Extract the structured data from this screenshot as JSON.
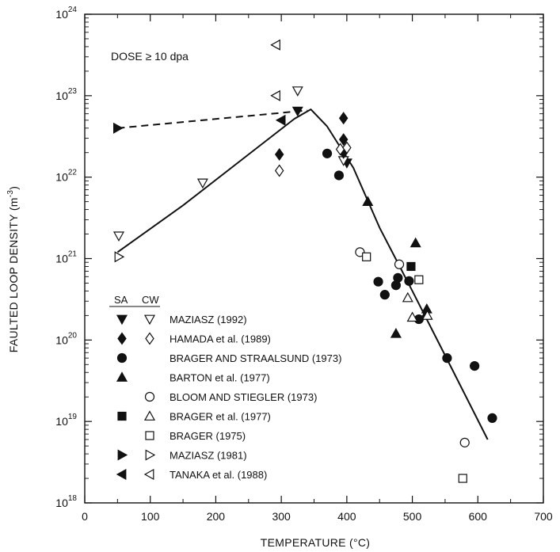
{
  "chart_data": {
    "type": "scatter",
    "title": "",
    "xlabel": "TEMPERATURE (°C)",
    "ylabel": "FAULTED LOOP DENSITY (m",
    "ylabel_sup": "-3",
    "ylabel_close": ")",
    "xlim": [
      0,
      700
    ],
    "ylim_log10": [
      18,
      24
    ],
    "y_scale": "log",
    "x_ticks": [
      "0",
      "100",
      "200",
      "300",
      "400",
      "500",
      "600",
      "700"
    ],
    "y_ticks": [
      {
        "base": "10",
        "exp": "18"
      },
      {
        "base": "10",
        "exp": "19"
      },
      {
        "base": "10",
        "exp": "20"
      },
      {
        "base": "10",
        "exp": "21"
      },
      {
        "base": "10",
        "exp": "22"
      },
      {
        "base": "10",
        "exp": "23"
      },
      {
        "base": "10",
        "exp": "24"
      }
    ],
    "annotation": "DOSE ≥ 10 dpa",
    "legend_header": {
      "sa": "SA",
      "cw": "CW"
    },
    "series": [
      {
        "name": "MAZIASZ (1992)",
        "sa_marker": "tri-down-filled",
        "cw_marker": "tri-down-open",
        "sa_points": [
          [
            325,
            6.5e+22
          ],
          [
            400,
            1.5e+22
          ]
        ],
        "cw_points": [
          [
            52,
            1.9e+21
          ],
          [
            180,
            8.5e+21
          ],
          [
            325,
            1.15e+23
          ],
          [
            395,
            1.6e+22
          ]
        ]
      },
      {
        "name": "HAMADA et al. (1989)",
        "sa_marker": "diamond-filled",
        "cw_marker": "diamond-open",
        "sa_points": [
          [
            297,
            1.9e+22
          ],
          [
            395,
            5.3e+22
          ],
          [
            395,
            2.9e+22
          ],
          [
            395,
            2e+22
          ]
        ],
        "cw_points": [
          [
            297,
            1.2e+22
          ],
          [
            390,
            2.2e+22
          ],
          [
            400,
            2.3e+22
          ]
        ]
      },
      {
        "name": "BRAGER AND STRAALSUND (1973)",
        "sa_marker": "circle-filled",
        "cw_marker": "",
        "sa_points": [
          [
            370,
            1.95e+22
          ],
          [
            388,
            1.05e+22
          ],
          [
            448,
            5.2e+20
          ],
          [
            458,
            3.6e+20
          ],
          [
            478,
            5.8e+20
          ],
          [
            475,
            4.7e+20
          ],
          [
            495,
            5.3e+20
          ],
          [
            510,
            1.8e+20
          ],
          [
            553,
            6e+19
          ],
          [
            595,
            4.8e+19
          ],
          [
            622,
            1.1e+19
          ]
        ],
        "cw_points": []
      },
      {
        "name": "BARTON et al. (1977)",
        "sa_marker": "tri-up-filled",
        "cw_marker": "",
        "sa_points": [
          [
            432,
            5e+21
          ],
          [
            475,
            1.2e+20
          ],
          [
            505,
            1.55e+21
          ],
          [
            520,
            2e+20
          ],
          [
            522,
            2.4e+20
          ]
        ],
        "cw_points": []
      },
      {
        "name": "BLOOM AND STIEGLER (1973)",
        "sa_marker": "",
        "cw_marker": "circle-open",
        "sa_points": [],
        "cw_points": [
          [
            420,
            1.2e+21
          ],
          [
            480,
            8.5e+20
          ],
          [
            580,
            5.5e+18
          ]
        ]
      },
      {
        "name": "BRAGER et al. (1977)",
        "sa_marker": "square-filled",
        "cw_marker": "tri-up-open",
        "sa_points": [
          [
            498,
            8e+20
          ]
        ],
        "cw_points": [
          [
            493,
            3.3e+20
          ],
          [
            500,
            1.9e+20
          ],
          [
            523,
            2e+20
          ]
        ]
      },
      {
        "name": "BRAGER (1975)",
        "sa_marker": "",
        "cw_marker": "square-open",
        "sa_points": [],
        "cw_points": [
          [
            430,
            1.05e+21
          ],
          [
            510,
            5.5e+20
          ],
          [
            577,
            2e+18
          ]
        ]
      },
      {
        "name": "MAZIASZ (1981)",
        "sa_marker": "tri-right-filled",
        "cw_marker": "tri-right-open",
        "sa_points": [
          [
            50,
            4e+22
          ]
        ],
        "cw_points": [
          [
            52,
            1.05e+21
          ]
        ]
      },
      {
        "name": "TANAKA et al. (1988)",
        "sa_marker": "tri-left-filled",
        "cw_marker": "tri-left-open",
        "sa_points": [
          [
            300,
            5e+22
          ]
        ],
        "cw_points": [
          [
            292,
            4.2e+23
          ],
          [
            292,
            1e+23
          ]
        ]
      }
    ],
    "trend_lines": [
      {
        "style": "solid",
        "points": [
          [
            50,
            1.2e+21
          ],
          [
            150,
            4.5e+21
          ],
          [
            250,
            1.9e+22
          ],
          [
            320,
            5.2e+22
          ],
          [
            345,
            6.8e+22
          ],
          [
            370,
            4.2e+22
          ],
          [
            410,
            1.3e+22
          ],
          [
            450,
            2.4e+21
          ],
          [
            500,
            4e+20
          ],
          [
            560,
            4.5e+19
          ],
          [
            615,
            6e+18
          ]
        ]
      },
      {
        "style": "dashed",
        "points": [
          [
            50,
            4e+22
          ],
          [
            340,
            6.6e+22
          ]
        ]
      }
    ],
    "grid": false
  }
}
